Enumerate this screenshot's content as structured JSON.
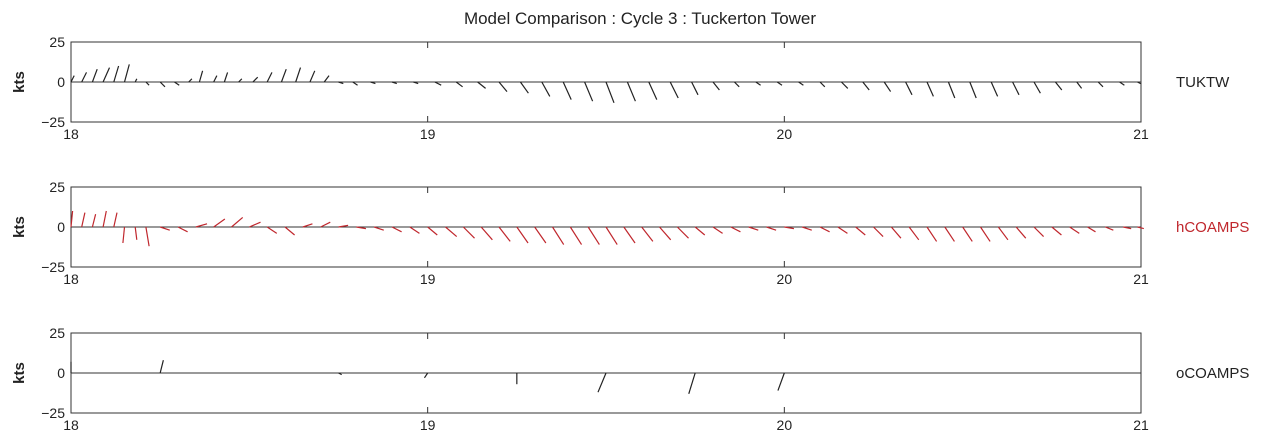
{
  "chart_data": {
    "type": "line",
    "title": "Model Comparison : Cycle 3 : Tuckerton Tower",
    "chart_kind": "stick-vector plots (wind vectors), 3 stacked panels",
    "panels": [
      {
        "name": "TUKTW",
        "color": "#222222",
        "ylabel": "kts",
        "ylim": [
          -25,
          25
        ],
        "yticks": [
          "25",
          "0",
          "−25"
        ],
        "xlim": [
          18,
          21
        ],
        "xticks": [
          "18",
          "19",
          "20",
          "21"
        ],
        "vectors": [
          {
            "t": 18.0,
            "u": 2,
            "v": 4
          },
          {
            "t": 18.03,
            "u": 3,
            "v": 6
          },
          {
            "t": 18.06,
            "u": 3,
            "v": 8
          },
          {
            "t": 18.09,
            "u": 4,
            "v": 9
          },
          {
            "t": 18.12,
            "u": 3,
            "v": 10
          },
          {
            "t": 18.15,
            "u": 3,
            "v": 11
          },
          {
            "t": 18.18,
            "u": 1,
            "v": 2
          },
          {
            "t": 18.21,
            "u": 2,
            "v": -2
          },
          {
            "t": 18.25,
            "u": 3,
            "v": -3
          },
          {
            "t": 18.29,
            "u": 3,
            "v": -2
          },
          {
            "t": 18.33,
            "u": 2,
            "v": 2
          },
          {
            "t": 18.36,
            "u": 2,
            "v": 7
          },
          {
            "t": 18.4,
            "u": 2,
            "v": 4
          },
          {
            "t": 18.43,
            "u": 2,
            "v": 6
          },
          {
            "t": 18.47,
            "u": 2,
            "v": 2
          },
          {
            "t": 18.51,
            "u": 3,
            "v": 3
          },
          {
            "t": 18.55,
            "u": 3,
            "v": 6
          },
          {
            "t": 18.59,
            "u": 3,
            "v": 8
          },
          {
            "t": 18.63,
            "u": 3,
            "v": 9
          },
          {
            "t": 18.67,
            "u": 3,
            "v": 7
          },
          {
            "t": 18.71,
            "u": 3,
            "v": 4
          },
          {
            "t": 18.75,
            "u": 3,
            "v": -1
          },
          {
            "t": 18.79,
            "u": 3,
            "v": -2
          },
          {
            "t": 18.84,
            "u": 3,
            "v": -1
          },
          {
            "t": 18.9,
            "u": 3,
            "v": -1
          },
          {
            "t": 18.96,
            "u": 3,
            "v": -1
          },
          {
            "t": 19.02,
            "u": 4,
            "v": -2
          },
          {
            "t": 19.08,
            "u": 4,
            "v": -3
          },
          {
            "t": 19.14,
            "u": 5,
            "v": -4
          },
          {
            "t": 19.2,
            "u": 5,
            "v": -6
          },
          {
            "t": 19.26,
            "u": 5,
            "v": -7
          },
          {
            "t": 19.32,
            "u": 5,
            "v": -9
          },
          {
            "t": 19.38,
            "u": 5,
            "v": -11
          },
          {
            "t": 19.44,
            "u": 5,
            "v": -12
          },
          {
            "t": 19.5,
            "u": 5,
            "v": -13
          },
          {
            "t": 19.56,
            "u": 5,
            "v": -12
          },
          {
            "t": 19.62,
            "u": 5,
            "v": -11
          },
          {
            "t": 19.68,
            "u": 5,
            "v": -10
          },
          {
            "t": 19.74,
            "u": 4,
            "v": -8
          },
          {
            "t": 19.8,
            "u": 4,
            "v": -5
          },
          {
            "t": 19.86,
            "u": 3,
            "v": -3
          },
          {
            "t": 19.92,
            "u": 3,
            "v": -2
          },
          {
            "t": 19.98,
            "u": 3,
            "v": -2
          },
          {
            "t": 20.04,
            "u": 3,
            "v": -2
          },
          {
            "t": 20.1,
            "u": 3,
            "v": -3
          },
          {
            "t": 20.16,
            "u": 4,
            "v": -4
          },
          {
            "t": 20.22,
            "u": 4,
            "v": -5
          },
          {
            "t": 20.28,
            "u": 4,
            "v": -6
          },
          {
            "t": 20.34,
            "u": 4,
            "v": -8
          },
          {
            "t": 20.4,
            "u": 4,
            "v": -9
          },
          {
            "t": 20.46,
            "u": 4,
            "v": -10
          },
          {
            "t": 20.52,
            "u": 4,
            "v": -10
          },
          {
            "t": 20.58,
            "u": 4,
            "v": -9
          },
          {
            "t": 20.64,
            "u": 4,
            "v": -8
          },
          {
            "t": 20.7,
            "u": 4,
            "v": -7
          },
          {
            "t": 20.76,
            "u": 4,
            "v": -5
          },
          {
            "t": 20.82,
            "u": 3,
            "v": -4
          },
          {
            "t": 20.88,
            "u": 3,
            "v": -3
          },
          {
            "t": 20.94,
            "u": 3,
            "v": -2
          },
          {
            "t": 20.99,
            "u": 2,
            "v": -1
          }
        ]
      },
      {
        "name": "hCOAMPS",
        "color": "#c0272d",
        "ylabel": "kts",
        "ylim": [
          -25,
          25
        ],
        "yticks": [
          "25",
          "0",
          "−25"
        ],
        "xlim": [
          18,
          21
        ],
        "xticks": [
          "18",
          "19",
          "20",
          "21"
        ],
        "vectors": [
          {
            "t": 18.0,
            "u": 1,
            "v": 10
          },
          {
            "t": 18.03,
            "u": 2,
            "v": 9
          },
          {
            "t": 18.06,
            "u": 2,
            "v": 8
          },
          {
            "t": 18.09,
            "u": 2,
            "v": 10
          },
          {
            "t": 18.12,
            "u": 2,
            "v": 9
          },
          {
            "t": 18.15,
            "u": -1,
            "v": -10
          },
          {
            "t": 18.18,
            "u": 1,
            "v": -8
          },
          {
            "t": 18.21,
            "u": 2,
            "v": -12
          },
          {
            "t": 18.25,
            "u": 6,
            "v": -2
          },
          {
            "t": 18.3,
            "u": 6,
            "v": -3
          },
          {
            "t": 18.35,
            "u": 7,
            "v": 2
          },
          {
            "t": 18.4,
            "u": 7,
            "v": 5
          },
          {
            "t": 18.45,
            "u": 7,
            "v": 6
          },
          {
            "t": 18.5,
            "u": 7,
            "v": 3
          },
          {
            "t": 18.55,
            "u": 6,
            "v": -4
          },
          {
            "t": 18.6,
            "u": 6,
            "v": -5
          },
          {
            "t": 18.65,
            "u": 6,
            "v": 2
          },
          {
            "t": 18.7,
            "u": 6,
            "v": 3
          },
          {
            "t": 18.75,
            "u": 6,
            "v": 1
          },
          {
            "t": 18.8,
            "u": 6,
            "v": -1
          },
          {
            "t": 18.85,
            "u": 6,
            "v": -2
          },
          {
            "t": 18.9,
            "u": 6,
            "v": -3
          },
          {
            "t": 18.95,
            "u": 6,
            "v": -4
          },
          {
            "t": 19.0,
            "u": 6,
            "v": -5
          },
          {
            "t": 19.05,
            "u": 7,
            "v": -6
          },
          {
            "t": 19.1,
            "u": 7,
            "v": -7
          },
          {
            "t": 19.15,
            "u": 7,
            "v": -8
          },
          {
            "t": 19.2,
            "u": 7,
            "v": -9
          },
          {
            "t": 19.25,
            "u": 7,
            "v": -10
          },
          {
            "t": 19.3,
            "u": 7,
            "v": -10
          },
          {
            "t": 19.35,
            "u": 7,
            "v": -11
          },
          {
            "t": 19.4,
            "u": 7,
            "v": -11
          },
          {
            "t": 19.45,
            "u": 7,
            "v": -11
          },
          {
            "t": 19.5,
            "u": 7,
            "v": -11
          },
          {
            "t": 19.55,
            "u": 7,
            "v": -10
          },
          {
            "t": 19.6,
            "u": 7,
            "v": -9
          },
          {
            "t": 19.65,
            "u": 7,
            "v": -8
          },
          {
            "t": 19.7,
            "u": 7,
            "v": -7
          },
          {
            "t": 19.75,
            "u": 6,
            "v": -5
          },
          {
            "t": 19.8,
            "u": 6,
            "v": -4
          },
          {
            "t": 19.85,
            "u": 6,
            "v": -3
          },
          {
            "t": 19.9,
            "u": 6,
            "v": -2
          },
          {
            "t": 19.95,
            "u": 6,
            "v": -2
          },
          {
            "t": 20.0,
            "u": 6,
            "v": -1
          },
          {
            "t": 20.05,
            "u": 6,
            "v": -2
          },
          {
            "t": 20.1,
            "u": 6,
            "v": -3
          },
          {
            "t": 20.15,
            "u": 6,
            "v": -4
          },
          {
            "t": 20.2,
            "u": 6,
            "v": -5
          },
          {
            "t": 20.25,
            "u": 6,
            "v": -6
          },
          {
            "t": 20.3,
            "u": 6,
            "v": -7
          },
          {
            "t": 20.35,
            "u": 6,
            "v": -8
          },
          {
            "t": 20.4,
            "u": 6,
            "v": -9
          },
          {
            "t": 20.45,
            "u": 6,
            "v": -9
          },
          {
            "t": 20.5,
            "u": 6,
            "v": -9
          },
          {
            "t": 20.55,
            "u": 6,
            "v": -9
          },
          {
            "t": 20.6,
            "u": 6,
            "v": -8
          },
          {
            "t": 20.65,
            "u": 6,
            "v": -7
          },
          {
            "t": 20.7,
            "u": 6,
            "v": -6
          },
          {
            "t": 20.75,
            "u": 6,
            "v": -5
          },
          {
            "t": 20.8,
            "u": 6,
            "v": -4
          },
          {
            "t": 20.85,
            "u": 5,
            "v": -3
          },
          {
            "t": 20.9,
            "u": 5,
            "v": -2
          },
          {
            "t": 20.95,
            "u": 5,
            "v": -1
          },
          {
            "t": 20.99,
            "u": 4,
            "v": -1
          }
        ]
      },
      {
        "name": "oCOAMPS",
        "color": "#222222",
        "ylabel": "kts",
        "ylim": [
          -25,
          25
        ],
        "yticks": [
          "25",
          "0",
          "−25"
        ],
        "xlim": [
          18,
          21
        ],
        "xticks": [
          "18",
          "19",
          "20",
          "21"
        ],
        "vectors": [
          {
            "t": 18.0,
            "u": 0,
            "v": 7
          },
          {
            "t": 18.25,
            "u": 2,
            "v": 8
          },
          {
            "t": 18.75,
            "u": 2,
            "v": -1
          },
          {
            "t": 19.0,
            "u": -2,
            "v": -3
          },
          {
            "t": 19.25,
            "u": 0,
            "v": -7
          },
          {
            "t": 19.5,
            "u": -5,
            "v": -12
          },
          {
            "t": 19.75,
            "u": -4,
            "v": -13
          },
          {
            "t": 20.0,
            "u": -4,
            "v": -11
          }
        ]
      }
    ]
  }
}
